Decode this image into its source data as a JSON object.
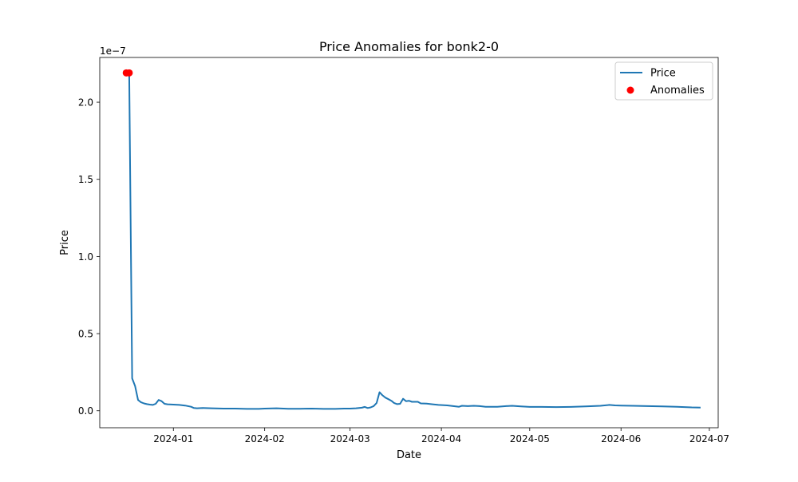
{
  "chart_data": {
    "type": "line",
    "title": "Price Anomalies for bonk2-0",
    "xlabel": "Date",
    "ylabel": "Price",
    "y_scale_label": "1e−7",
    "y_multiplier": 1e-07,
    "xlim": [
      "2023-12-07",
      "2024-07-04"
    ],
    "ylim": [
      -0.11,
      2.29
    ],
    "x_ticks": [
      "2024-01-01",
      "2024-02-01",
      "2024-03-01",
      "2024-04-01",
      "2024-05-01",
      "2024-06-01",
      "2024-07-01"
    ],
    "x_tick_labels": [
      "2024-01",
      "2024-02",
      "2024-03",
      "2024-04",
      "2024-05",
      "2024-06",
      "2024-07"
    ],
    "y_ticks": [
      0.0,
      0.5,
      1.0,
      1.5,
      2.0
    ],
    "y_tick_labels": [
      "0.0",
      "0.5",
      "1.0",
      "1.5",
      "2.0"
    ],
    "grid": false,
    "legend_position": "top-right",
    "series": [
      {
        "name": "Price",
        "kind": "line",
        "color": "#1f77b4",
        "points": [
          [
            "2023-12-16",
            2.19
          ],
          [
            "2023-12-17",
            2.19
          ],
          [
            "2023-12-18",
            0.21
          ],
          [
            "2023-12-19",
            0.16
          ],
          [
            "2023-12-20",
            0.07
          ],
          [
            "2023-12-21",
            0.055
          ],
          [
            "2023-12-22",
            0.048
          ],
          [
            "2023-12-23",
            0.043
          ],
          [
            "2023-12-24",
            0.04
          ],
          [
            "2023-12-25",
            0.038
          ],
          [
            "2023-12-26",
            0.045
          ],
          [
            "2023-12-27",
            0.07
          ],
          [
            "2023-12-28",
            0.062
          ],
          [
            "2023-12-29",
            0.045
          ],
          [
            "2023-12-30",
            0.042
          ],
          [
            "2024-01-01",
            0.04
          ],
          [
            "2024-01-03",
            0.038
          ],
          [
            "2024-01-05",
            0.034
          ],
          [
            "2024-01-07",
            0.026
          ],
          [
            "2024-01-08",
            0.018
          ],
          [
            "2024-01-09",
            0.016
          ],
          [
            "2024-01-11",
            0.018
          ],
          [
            "2024-01-14",
            0.016
          ],
          [
            "2024-01-18",
            0.014
          ],
          [
            "2024-01-22",
            0.014
          ],
          [
            "2024-01-26",
            0.012
          ],
          [
            "2024-01-30",
            0.012
          ],
          [
            "2024-02-01",
            0.014
          ],
          [
            "2024-02-05",
            0.016
          ],
          [
            "2024-02-09",
            0.013
          ],
          [
            "2024-02-13",
            0.013
          ],
          [
            "2024-02-17",
            0.014
          ],
          [
            "2024-02-21",
            0.012
          ],
          [
            "2024-02-25",
            0.012
          ],
          [
            "2024-02-28",
            0.014
          ],
          [
            "2024-03-01",
            0.014
          ],
          [
            "2024-03-03",
            0.016
          ],
          [
            "2024-03-05",
            0.02
          ],
          [
            "2024-03-06",
            0.025
          ],
          [
            "2024-03-07",
            0.018
          ],
          [
            "2024-03-08",
            0.022
          ],
          [
            "2024-03-09",
            0.03
          ],
          [
            "2024-03-10",
            0.05
          ],
          [
            "2024-03-11",
            0.12
          ],
          [
            "2024-03-12",
            0.1
          ],
          [
            "2024-03-13",
            0.085
          ],
          [
            "2024-03-14",
            0.075
          ],
          [
            "2024-03-15",
            0.065
          ],
          [
            "2024-03-16",
            0.05
          ],
          [
            "2024-03-17",
            0.043
          ],
          [
            "2024-03-18",
            0.045
          ],
          [
            "2024-03-19",
            0.078
          ],
          [
            "2024-03-20",
            0.062
          ],
          [
            "2024-03-21",
            0.065
          ],
          [
            "2024-03-22",
            0.058
          ],
          [
            "2024-03-24",
            0.058
          ],
          [
            "2024-03-25",
            0.048
          ],
          [
            "2024-03-27",
            0.046
          ],
          [
            "2024-03-29",
            0.042
          ],
          [
            "2024-03-31",
            0.038
          ],
          [
            "2024-04-03",
            0.035
          ],
          [
            "2024-04-05",
            0.03
          ],
          [
            "2024-04-07",
            0.026
          ],
          [
            "2024-04-08",
            0.032
          ],
          [
            "2024-04-10",
            0.03
          ],
          [
            "2024-04-12",
            0.032
          ],
          [
            "2024-04-14",
            0.03
          ],
          [
            "2024-04-16",
            0.026
          ],
          [
            "2024-04-20",
            0.026
          ],
          [
            "2024-04-23",
            0.03
          ],
          [
            "2024-04-25",
            0.032
          ],
          [
            "2024-04-28",
            0.028
          ],
          [
            "2024-05-01",
            0.025
          ],
          [
            "2024-05-05",
            0.025
          ],
          [
            "2024-05-10",
            0.024
          ],
          [
            "2024-05-15",
            0.025
          ],
          [
            "2024-05-20",
            0.028
          ],
          [
            "2024-05-25",
            0.032
          ],
          [
            "2024-05-28",
            0.038
          ],
          [
            "2024-05-30",
            0.035
          ],
          [
            "2024-06-01",
            0.034
          ],
          [
            "2024-06-05",
            0.032
          ],
          [
            "2024-06-10",
            0.03
          ],
          [
            "2024-06-15",
            0.028
          ],
          [
            "2024-06-20",
            0.026
          ],
          [
            "2024-06-25",
            0.022
          ],
          [
            "2024-06-28",
            0.021
          ]
        ]
      },
      {
        "name": "Anomalies",
        "kind": "scatter",
        "color": "#ff0000",
        "points": [
          [
            "2023-12-16",
            2.19
          ],
          [
            "2023-12-17",
            2.19
          ]
        ]
      }
    ]
  }
}
